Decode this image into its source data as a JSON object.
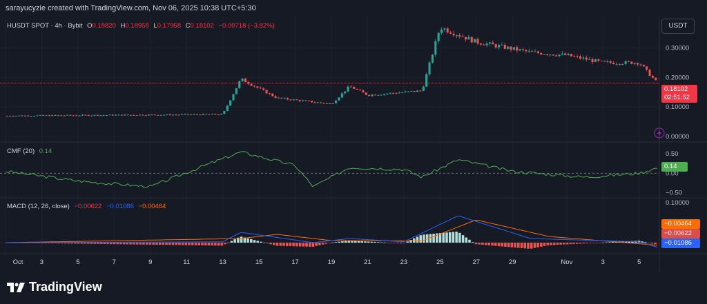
{
  "header": {
    "credit": "sarayucyzie created with TradingView.com, Nov 06, 2025 10:38 UTC+5:30"
  },
  "symbol": {
    "name": "HUSDT SPOT · 4h · Bybit",
    "o_label": "O",
    "o": "0.18820",
    "h_label": "H",
    "h": "0.18958",
    "l_label": "L",
    "l": "0.17958",
    "c_label": "C",
    "c": "0.18102",
    "change": "−0.00718 (−3.82%)"
  },
  "currency_button": "USDT",
  "price_axis": {
    "ticks": [
      "0.30000",
      "0.20000",
      "0.10000",
      "0.00000"
    ],
    "last_price": "0.18102",
    "countdown": "02:51:52"
  },
  "cmf": {
    "label": "CMF (20)",
    "value": "0.14",
    "ticks": [
      "0.50",
      "0.00",
      "−0.50"
    ]
  },
  "macd": {
    "label": "MACD (12, 26, close)",
    "v1": "−0.00622",
    "v2": "−0.01086",
    "v3": "−0.00464",
    "axis_top": "0.10000",
    "tags": [
      "−0.00464",
      "−0.00622",
      "−0.01086"
    ]
  },
  "time_axis": [
    "Oct",
    "3",
    "5",
    "7",
    "9",
    "11",
    "13",
    "15",
    "17",
    "19",
    "21",
    "23",
    "25",
    "27",
    "29",
    "Nov",
    "3",
    "5"
  ],
  "footer": {
    "brand": "TradingView"
  },
  "colors": {
    "up": "#26a69a",
    "down": "#ef5350",
    "cmf": "#4caf50",
    "macd": "#2962ff",
    "signal": "#ff6d00",
    "bg": "#161a25"
  },
  "chart_data": {
    "type": "candlestick",
    "title": "HUSDT SPOT · 4h · Bybit",
    "x_range": [
      "2025-10-01",
      "2025-11-06"
    ],
    "price_range": [
      0,
      0.35
    ],
    "price_key_points": [
      {
        "date": "2025-10-01",
        "close": 0.07
      },
      {
        "date": "2025-10-13",
        "close": 0.075
      },
      {
        "date": "2025-10-14",
        "close": 0.195
      },
      {
        "date": "2025-10-16",
        "close": 0.13
      },
      {
        "date": "2025-10-19",
        "close": 0.11
      },
      {
        "date": "2025-10-20",
        "close": 0.17
      },
      {
        "date": "2025-10-21",
        "close": 0.14
      },
      {
        "date": "2025-10-24",
        "close": 0.155
      },
      {
        "date": "2025-10-25",
        "close": 0.37
      },
      {
        "date": "2025-10-27",
        "close": 0.32
      },
      {
        "date": "2025-10-30",
        "close": 0.285
      },
      {
        "date": "2025-11-01",
        "close": 0.275
      },
      {
        "date": "2025-11-03",
        "close": 0.25
      },
      {
        "date": "2025-11-05",
        "close": 0.25
      },
      {
        "date": "2025-11-06",
        "close": 0.18102
      }
    ],
    "cmf_range": [
      -0.6,
      0.7
    ],
    "cmf_key_points": [
      {
        "date": "2025-10-01",
        "v": 0.05
      },
      {
        "date": "2025-10-05",
        "v": -0.2
      },
      {
        "date": "2025-10-09",
        "v": -0.35
      },
      {
        "date": "2025-10-12",
        "v": 0.2
      },
      {
        "date": "2025-10-14",
        "v": 0.55
      },
      {
        "date": "2025-10-17",
        "v": 0.2
      },
      {
        "date": "2025-10-18",
        "v": -0.35
      },
      {
        "date": "2025-10-20",
        "v": 0.15
      },
      {
        "date": "2025-10-23",
        "v": 0.1
      },
      {
        "date": "2025-10-24",
        "v": -0.1
      },
      {
        "date": "2025-10-26",
        "v": 0.35
      },
      {
        "date": "2025-10-29",
        "v": 0.05
      },
      {
        "date": "2025-11-02",
        "v": -0.1
      },
      {
        "date": "2025-11-05",
        "v": 0.0
      },
      {
        "date": "2025-11-06",
        "v": 0.14
      }
    ],
    "macd_range": [
      -0.03,
      0.1
    ],
    "macd_line": [
      {
        "date": "2025-10-01",
        "v": 0.0
      },
      {
        "date": "2025-10-13",
        "v": 0.002
      },
      {
        "date": "2025-10-14",
        "v": 0.025
      },
      {
        "date": "2025-10-18",
        "v": 0.0
      },
      {
        "date": "2025-10-20",
        "v": 0.01
      },
      {
        "date": "2025-10-23",
        "v": 0.002
      },
      {
        "date": "2025-10-26",
        "v": 0.065
      },
      {
        "date": "2025-10-30",
        "v": 0.01
      },
      {
        "date": "2025-11-05",
        "v": 0.002
      },
      {
        "date": "2025-11-06",
        "v": -0.01086
      }
    ],
    "signal_line": [
      {
        "date": "2025-10-01",
        "v": 0.0
      },
      {
        "date": "2025-10-14",
        "v": 0.01
      },
      {
        "date": "2025-10-16",
        "v": 0.02
      },
      {
        "date": "2025-10-19",
        "v": 0.005
      },
      {
        "date": "2025-10-24",
        "v": 0.004
      },
      {
        "date": "2025-10-27",
        "v": 0.055
      },
      {
        "date": "2025-10-31",
        "v": 0.015
      },
      {
        "date": "2025-11-06",
        "v": -0.00622
      }
    ]
  }
}
